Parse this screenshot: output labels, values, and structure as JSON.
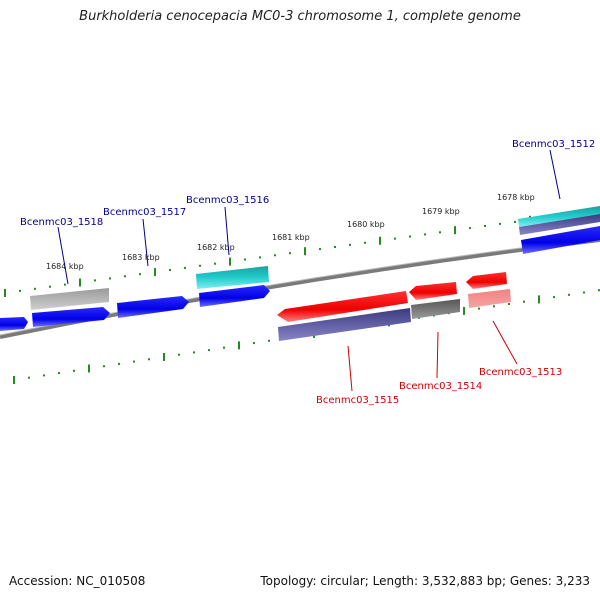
{
  "title": "Burkholderia cenocepacia MC0-3 chromosome 1, complete genome",
  "footer": {
    "accession": "Accession: NC_010508",
    "summary": "Topology: circular; Length: 3,532,883 bp; Genes: 3,233"
  },
  "colors": {
    "forward_label": "#00008b",
    "reverse_label": "#cc0000",
    "tick": "#228b22",
    "backbone": "#7a7a7a"
  },
  "scale_labels": [
    "1684 kbp",
    "1683 kbp",
    "1682 kbp",
    "1681 kbp",
    "1680 kbp",
    "1679 kbp",
    "1678 kbp"
  ],
  "gene_labels": {
    "g1518": "Bcenmc03_1518",
    "g1517": "Bcenmc03_1517",
    "g1516": "Bcenmc03_1516",
    "g1512": "Bcenmc03_1512",
    "g1515": "Bcenmc03_1515",
    "g1514": "Bcenmc03_1514",
    "g1513": "Bcenmc03_1513"
  }
}
